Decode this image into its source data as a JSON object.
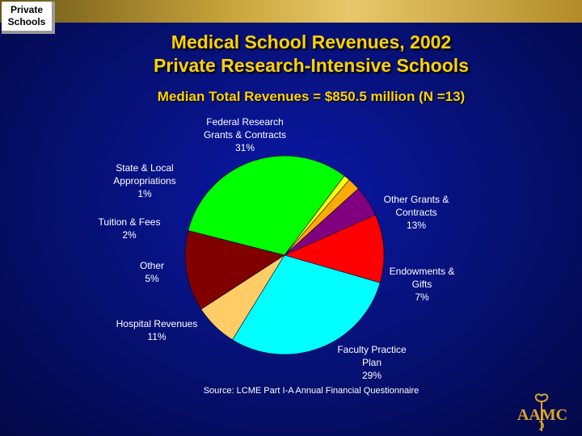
{
  "badge": [
    "Private",
    "Schools"
  ],
  "title_lines": [
    "Medical School Revenues, 2002",
    "Private Research-Intensive Schools"
  ],
  "subtitle": "Median Total Revenues = $850.5 million (N =13)",
  "source": "Source: LCME Part I-A Annual Financial Questionnaire",
  "logo_text": "AAMC",
  "chart_data": {
    "type": "pie",
    "title": "Medical School Revenues, 2002",
    "subtitle": "Median Total Revenues = $850.5 million (N =13)",
    "slices": [
      {
        "label_lines": [
          "Federal Research",
          "Grants & Contracts"
        ],
        "pct_label": "31%",
        "value": 31,
        "color": "#00ff00"
      },
      {
        "label_lines": [
          "Other Grants &",
          "Contracts"
        ],
        "pct_label": "13%",
        "value": 13,
        "color": "#800000"
      },
      {
        "label_lines": [
          "Endowments &",
          "Gifts"
        ],
        "pct_label": "7%",
        "value": 7,
        "color": "#ffcc66"
      },
      {
        "label_lines": [
          "Faculty Practice",
          "Plan"
        ],
        "pct_label": "29%",
        "value": 29,
        "color": "#00ffff"
      },
      {
        "label_lines": [
          "Hospital Revenues"
        ],
        "pct_label": "11%",
        "value": 11,
        "color": "#ff0000"
      },
      {
        "label_lines": [
          "Other"
        ],
        "pct_label": "5%",
        "value": 5,
        "color": "#800080"
      },
      {
        "label_lines": [
          "Tuition & Fees"
        ],
        "pct_label": "2%",
        "value": 2,
        "color": "#ffaa00"
      },
      {
        "label_lines": [
          "State & Local",
          "Appropriations"
        ],
        "pct_label": "1%",
        "value": 1,
        "color": "#ffff00"
      }
    ]
  }
}
